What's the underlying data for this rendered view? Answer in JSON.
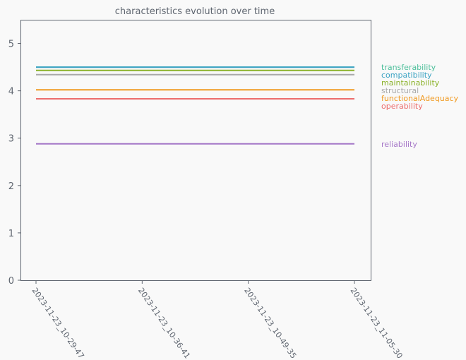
{
  "chart_data": {
    "type": "line",
    "title": "characteristics evolution over time",
    "xlabel": "",
    "ylabel": "",
    "categories": [
      "2023-11-23_10-29-47",
      "2023-11-23_10-36-41",
      "2023-11-23_10-49-35",
      "2023-11-23_11-05-30"
    ],
    "ylim": [
      0,
      5.5
    ],
    "yticks": [
      0,
      1,
      2,
      3,
      4,
      5
    ],
    "grid": false,
    "legend_placement": "right",
    "series": [
      {
        "name": "transferability",
        "color": "#4cbf9a",
        "values": [
          4.5,
          4.5,
          4.5,
          4.5
        ]
      },
      {
        "name": "compatibility",
        "color": "#3fa4c4",
        "values": [
          4.5,
          4.5,
          4.5,
          4.5
        ]
      },
      {
        "name": "maintainability",
        "color": "#8bb22a",
        "values": [
          4.43,
          4.43,
          4.43,
          4.43
        ]
      },
      {
        "name": "structural",
        "color": "#a9a9a9",
        "values": [
          4.34,
          4.34,
          4.34,
          4.34
        ]
      },
      {
        "name": "functionalAdequacy",
        "color": "#f09a22",
        "values": [
          4.02,
          4.02,
          4.02,
          4.02
        ]
      },
      {
        "name": "operability",
        "color": "#ec6e6e",
        "values": [
          3.83,
          3.83,
          3.83,
          3.83
        ]
      },
      {
        "name": "reliability",
        "color": "#a678c8",
        "values": [
          2.88,
          2.88,
          2.88,
          2.88
        ]
      }
    ]
  }
}
